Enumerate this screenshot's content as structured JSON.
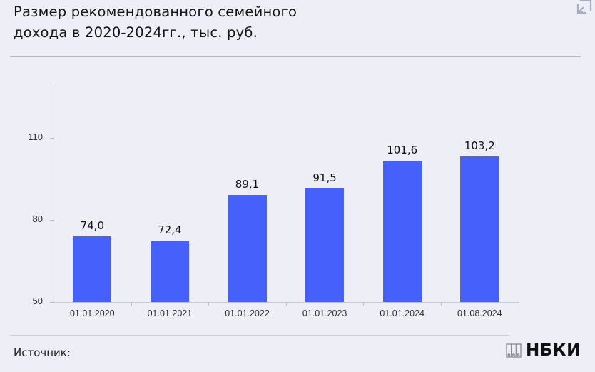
{
  "header": {
    "title_line1": "Размер рекомендованного семейного",
    "title_line2": "дохода в 2020-2024гг., тыс. руб.",
    "expand_icon": "expand-diagonal-icon"
  },
  "footer": {
    "source_label": "Источник:",
    "brand": "НБКИ",
    "brand_icon": "nbki-logo-icon"
  },
  "colors": {
    "bar": "#4661fb",
    "background": "#eeeef6"
  },
  "chart_data": {
    "type": "bar",
    "title": "Размер рекомендованного семейного дохода в 2020-2024гг., тыс. руб.",
    "categories": [
      "01.01.2020",
      "01.01.2021",
      "01.01.2022",
      "01.01.2023",
      "01.01.2024",
      "01.08.2024"
    ],
    "values": [
      74.0,
      72.4,
      89.1,
      91.5,
      101.6,
      103.2
    ],
    "value_labels": [
      "74,0",
      "72,4",
      "89,1",
      "91,5",
      "101,6",
      "103,2"
    ],
    "xlabel": "",
    "ylabel": "тыс. руб.",
    "yticks": [
      50,
      80,
      110
    ],
    "ytick_labels": [
      "50",
      "80",
      "110"
    ],
    "ylim": [
      50,
      130
    ],
    "grid": false,
    "legend": null
  }
}
